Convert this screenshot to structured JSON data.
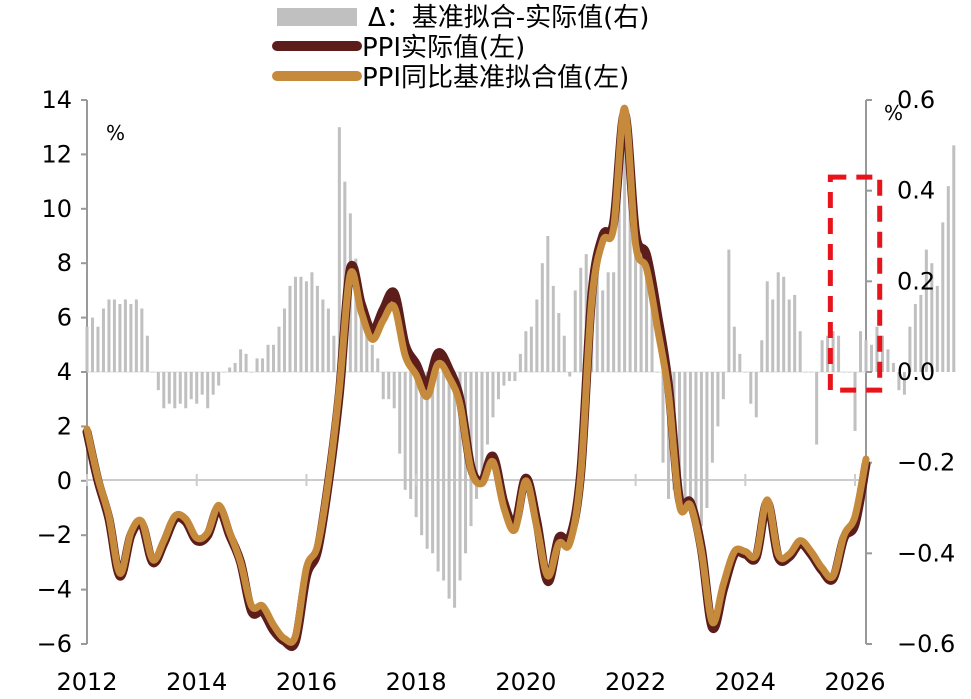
{
  "chart_data": {
    "type": "bar+line",
    "legend": {
      "placement": "top-center",
      "items": [
        {
          "label": "Δ：基准拟合-实际值(右)",
          "kind": "bar",
          "color": "#c0c0c0"
        },
        {
          "label": "PPI实际值(左)",
          "kind": "line",
          "color": "#5c1d1b"
        },
        {
          "label": "PPI同比基准拟合值(左)",
          "kind": "line",
          "color": "#c68a3c"
        }
      ]
    },
    "left_axis": {
      "unit": "%",
      "range": [
        -6,
        14
      ],
      "ticks": [
        "14",
        "12",
        "10",
        "8",
        "6",
        "4",
        "2",
        "0",
        "−2",
        "−4",
        "−6"
      ]
    },
    "right_axis": {
      "unit": "%",
      "range": [
        -0.6,
        0.6
      ],
      "ticks": [
        "0.6",
        "0.4",
        "0.2",
        "0.0",
        "−0.2",
        "−0.4",
        "−0.6"
      ]
    },
    "x_axis": {
      "range": [
        2012,
        2026.2
      ],
      "ticks": [
        "2012",
        "2014",
        "2016",
        "2018",
        "2020",
        "2022",
        "2024",
        "2026"
      ]
    },
    "colors": {
      "bar": "#c0c0c0",
      "actual": "#5c1d1b",
      "fit": "#c68a3c",
      "highlight": "#e8141c",
      "axis": "#999999"
    },
    "highlight_box": {
      "x_range": [
        2025.55,
        2026.45
      ],
      "y_range_right": [
        -0.04,
        0.43
      ]
    },
    "series_actual": {
      "name": "PPI实际值(左)",
      "x": [
        2012.0,
        2012.2,
        2012.4,
        2012.6,
        2012.8,
        2013.0,
        2013.2,
        2013.4,
        2013.6,
        2013.8,
        2014.0,
        2014.2,
        2014.4,
        2014.6,
        2014.8,
        2015.0,
        2015.2,
        2015.4,
        2015.6,
        2015.8,
        2016.0,
        2016.2,
        2016.4,
        2016.6,
        2016.8,
        2017.0,
        2017.2,
        2017.4,
        2017.6,
        2017.8,
        2018.0,
        2018.2,
        2018.4,
        2018.6,
        2018.8,
        2019.0,
        2019.2,
        2019.4,
        2019.6,
        2019.8,
        2020.0,
        2020.2,
        2020.4,
        2020.6,
        2020.8,
        2021.0,
        2021.2,
        2021.4,
        2021.6,
        2021.8,
        2022.0,
        2022.2,
        2022.4,
        2022.6,
        2022.8,
        2023.0,
        2023.2,
        2023.4,
        2023.6,
        2023.8,
        2024.0,
        2024.2,
        2024.4,
        2024.6,
        2024.8,
        2025.0,
        2025.2,
        2025.4,
        2025.6,
        2025.8,
        2026.0,
        2026.2
      ],
      "y": [
        1.8,
        0.0,
        -1.4,
        -3.5,
        -2.0,
        -1.6,
        -3.0,
        -2.3,
        -1.4,
        -1.5,
        -2.2,
        -2.0,
        -1.0,
        -2.0,
        -3.0,
        -4.8,
        -4.8,
        -5.5,
        -5.9,
        -5.9,
        -3.5,
        -2.6,
        -0.1,
        3.2,
        7.8,
        6.5,
        5.5,
        6.3,
        6.9,
        5.0,
        4.3,
        3.5,
        4.7,
        4.1,
        3.0,
        0.5,
        0.0,
        0.9,
        -0.8,
        -1.6,
        0.1,
        -1.5,
        -3.7,
        -2.1,
        -2.1,
        0.3,
        6.8,
        9.0,
        9.5,
        13.5,
        9.1,
        8.3,
        6.1,
        3.5,
        -0.7,
        -0.8,
        -2.5,
        -5.4,
        -4.0,
        -2.7,
        -2.7,
        -2.8,
        -0.8,
        -2.8,
        -2.8,
        -2.3,
        -2.7,
        -3.3,
        -3.6,
        -2.1,
        -1.6,
        0.6
      ]
    },
    "series_fit": {
      "name": "PPI同比基准拟合值(左)",
      "x": [
        2012.0,
        2012.2,
        2012.4,
        2012.6,
        2012.8,
        2013.0,
        2013.2,
        2013.4,
        2013.6,
        2013.8,
        2014.0,
        2014.2,
        2014.4,
        2014.6,
        2014.8,
        2015.0,
        2015.2,
        2015.4,
        2015.6,
        2015.8,
        2016.0,
        2016.2,
        2016.4,
        2016.6,
        2016.8,
        2017.0,
        2017.2,
        2017.4,
        2017.6,
        2017.8,
        2018.0,
        2018.2,
        2018.4,
        2018.6,
        2018.8,
        2019.0,
        2019.2,
        2019.4,
        2019.6,
        2019.8,
        2020.0,
        2020.2,
        2020.4,
        2020.6,
        2020.8,
        2021.0,
        2021.2,
        2021.4,
        2021.6,
        2021.8,
        2022.0,
        2022.2,
        2022.4,
        2022.6,
        2022.8,
        2023.0,
        2023.2,
        2023.4,
        2023.6,
        2023.8,
        2024.0,
        2024.2,
        2024.4,
        2024.6,
        2024.8,
        2025.0,
        2025.2,
        2025.4,
        2025.6,
        2025.8,
        2026.0,
        2026.2
      ],
      "y": [
        1.9,
        0.1,
        -1.3,
        -3.4,
        -1.9,
        -1.5,
        -2.9,
        -2.2,
        -1.3,
        -1.4,
        -2.1,
        -1.9,
        -0.9,
        -1.9,
        -3.0,
        -4.6,
        -4.6,
        -5.3,
        -5.8,
        -5.7,
        -3.2,
        -2.4,
        0.0,
        3.4,
        7.6,
        6.2,
        5.2,
        5.9,
        6.4,
        4.6,
        3.9,
        3.1,
        4.3,
        3.8,
        2.8,
        0.4,
        -0.1,
        0.7,
        -1.0,
        -1.8,
        0.0,
        -1.7,
        -3.5,
        -2.3,
        -2.3,
        0.2,
        6.6,
        8.8,
        9.3,
        13.7,
        8.7,
        7.8,
        5.6,
        3.2,
        -0.9,
        -0.9,
        -2.6,
        -5.2,
        -3.8,
        -2.6,
        -2.6,
        -2.7,
        -0.7,
        -2.7,
        -2.7,
        -2.2,
        -2.6,
        -3.2,
        -3.5,
        -2.0,
        -1.3,
        0.8
      ]
    },
    "bars": {
      "name": "Δ：基准拟合-实际值(右)",
      "start": 2012.0,
      "step": 0.1,
      "values": [
        0.1,
        0.12,
        0.1,
        0.14,
        0.16,
        0.16,
        0.15,
        0.16,
        0.15,
        0.16,
        0.14,
        0.08,
        0.0,
        -0.04,
        -0.08,
        -0.07,
        -0.08,
        -0.07,
        -0.08,
        -0.06,
        -0.07,
        -0.05,
        -0.08,
        -0.05,
        -0.03,
        0.0,
        0.01,
        0.02,
        0.05,
        0.04,
        0.0,
        0.03,
        0.03,
        0.06,
        0.06,
        0.1,
        0.14,
        0.19,
        0.21,
        0.21,
        0.2,
        0.22,
        0.19,
        0.16,
        0.14,
        0.08,
        0.54,
        0.42,
        0.35,
        0.25,
        0.18,
        0.12,
        0.06,
        0.03,
        -0.06,
        -0.06,
        -0.08,
        -0.18,
        -0.26,
        -0.28,
        -0.32,
        -0.36,
        -0.39,
        -0.4,
        -0.44,
        -0.46,
        -0.5,
        -0.52,
        -0.46,
        -0.4,
        -0.34,
        -0.28,
        -0.24,
        -0.16,
        -0.1,
        -0.06,
        -0.03,
        -0.02,
        -0.02,
        0.04,
        0.09,
        0.1,
        0.16,
        0.24,
        0.3,
        0.19,
        0.13,
        0.08,
        -0.01,
        0.18,
        0.23,
        0.26,
        0.17,
        0.27,
        0.18,
        0.22,
        0.22,
        0.46,
        0.53,
        0.43,
        0.33,
        0.27,
        0.21,
        0.17,
        0.0,
        -0.2,
        -0.28,
        -0.26,
        -0.26,
        -0.3,
        -0.3,
        -0.34,
        -0.34,
        -0.3,
        -0.2,
        -0.12,
        -0.06,
        0.27,
        0.1,
        0.04,
        0.0,
        -0.07,
        -0.1,
        0.07,
        0.2,
        0.16,
        0.22,
        0.21,
        0.16,
        0.17,
        0.09,
        0.0,
        0.0,
        -0.16,
        0.07,
        0.08,
        0.09,
        0.08,
        0.0,
        0.0,
        -0.13,
        0.09,
        0.07,
        0.06,
        0.1,
        0.08,
        0.05,
        0.02,
        -0.04,
        -0.05,
        0.1,
        0.15,
        0.17,
        0.27,
        0.24,
        0.19,
        0.33,
        0.41,
        0.5
      ]
    }
  }
}
